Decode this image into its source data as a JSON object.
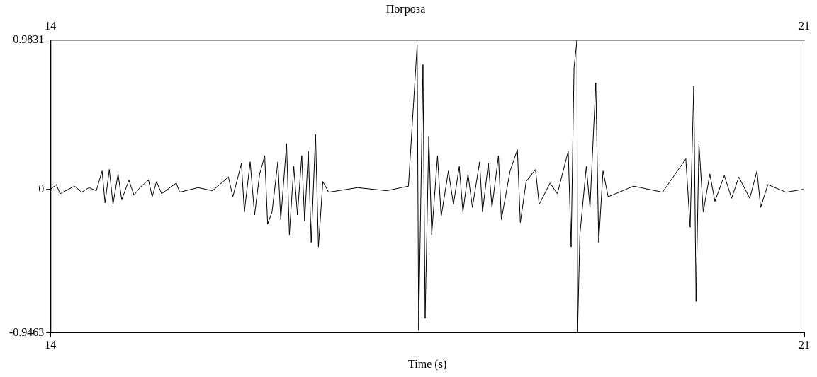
{
  "chart_data": {
    "type": "line",
    "title": "Погроза",
    "xlabel": "Time (s)",
    "xlim": [
      14,
      21
    ],
    "xticks": [
      14,
      21
    ],
    "x2lim": [
      14,
      21
    ],
    "x2ticks": [
      14,
      21
    ],
    "ylim": [
      -0.9463,
      0.9831
    ],
    "yticks": [
      -0.9463,
      0,
      0.9831
    ],
    "series": [
      {
        "color": "#000000",
        "x": [
          14.0,
          14.054,
          14.088,
          14.223,
          14.29,
          14.357,
          14.425,
          14.479,
          14.506,
          14.546,
          14.58,
          14.627,
          14.661,
          14.728,
          14.775,
          14.829,
          14.91,
          14.944,
          14.984,
          15.032,
          15.167,
          15.2,
          15.369,
          15.504,
          15.652,
          15.693,
          15.773,
          15.8,
          15.854,
          15.895,
          15.942,
          15.989,
          16.016,
          16.057,
          16.111,
          16.138,
          16.192,
          16.218,
          16.259,
          16.293,
          16.333,
          16.36,
          16.394,
          16.421,
          16.461,
          16.488,
          16.529,
          16.583,
          16.852,
          17.122,
          17.324,
          17.405,
          17.419,
          17.459,
          17.479,
          17.513,
          17.54,
          17.594,
          17.628,
          17.695,
          17.742,
          17.796,
          17.83,
          17.877,
          17.918,
          17.985,
          18.012,
          18.066,
          18.1,
          18.16,
          18.187,
          18.268,
          18.336,
          18.363,
          18.417,
          18.504,
          18.538,
          18.639,
          18.707,
          18.808,
          18.835,
          18.862,
          18.889,
          18.895,
          18.916,
          18.976,
          19.01,
          19.064,
          19.091,
          19.131,
          19.179,
          19.415,
          19.684,
          19.9,
          19.94,
          19.974,
          19.995,
          20.022,
          20.062,
          20.123,
          20.17,
          20.258,
          20.325,
          20.392,
          20.494,
          20.561,
          20.595,
          20.662,
          20.831,
          21.0
        ],
        "values": [
          0,
          0.03,
          -0.03,
          0.02,
          -0.02,
          0.01,
          -0.01,
          0.12,
          -0.09,
          0.13,
          -0.1,
          0.1,
          -0.07,
          0.06,
          -0.04,
          0.01,
          0.06,
          -0.05,
          0.05,
          -0.03,
          0.04,
          -0.02,
          0.01,
          -0.01,
          0.08,
          -0.05,
          0.17,
          -0.15,
          0.18,
          -0.17,
          0.1,
          0.22,
          -0.23,
          -0.15,
          0.18,
          -0.2,
          0.3,
          -0.3,
          0.15,
          -0.17,
          0.22,
          -0.21,
          0.25,
          -0.35,
          0.36,
          -0.38,
          0.05,
          -0.02,
          0.01,
          -0.01,
          0.02,
          0.95,
          -0.93,
          0.82,
          -0.85,
          0.35,
          -0.3,
          0.22,
          -0.18,
          0.12,
          -0.1,
          0.15,
          -0.15,
          0.1,
          -0.12,
          0.18,
          -0.15,
          0.17,
          -0.12,
          0.22,
          -0.2,
          0.12,
          0.26,
          -0.22,
          0.05,
          0.13,
          -0.1,
          0.04,
          -0.03,
          0.25,
          -0.38,
          0.8,
          0.98,
          -0.94,
          -0.3,
          0.15,
          -0.12,
          0.7,
          -0.35,
          0.12,
          -0.05,
          0.02,
          -0.02,
          0.2,
          -0.25,
          0.68,
          -0.74,
          0.3,
          -0.15,
          0.1,
          -0.08,
          0.09,
          -0.06,
          0.08,
          -0.06,
          0.12,
          -0.12,
          0.03,
          -0.02,
          0
        ]
      }
    ]
  }
}
